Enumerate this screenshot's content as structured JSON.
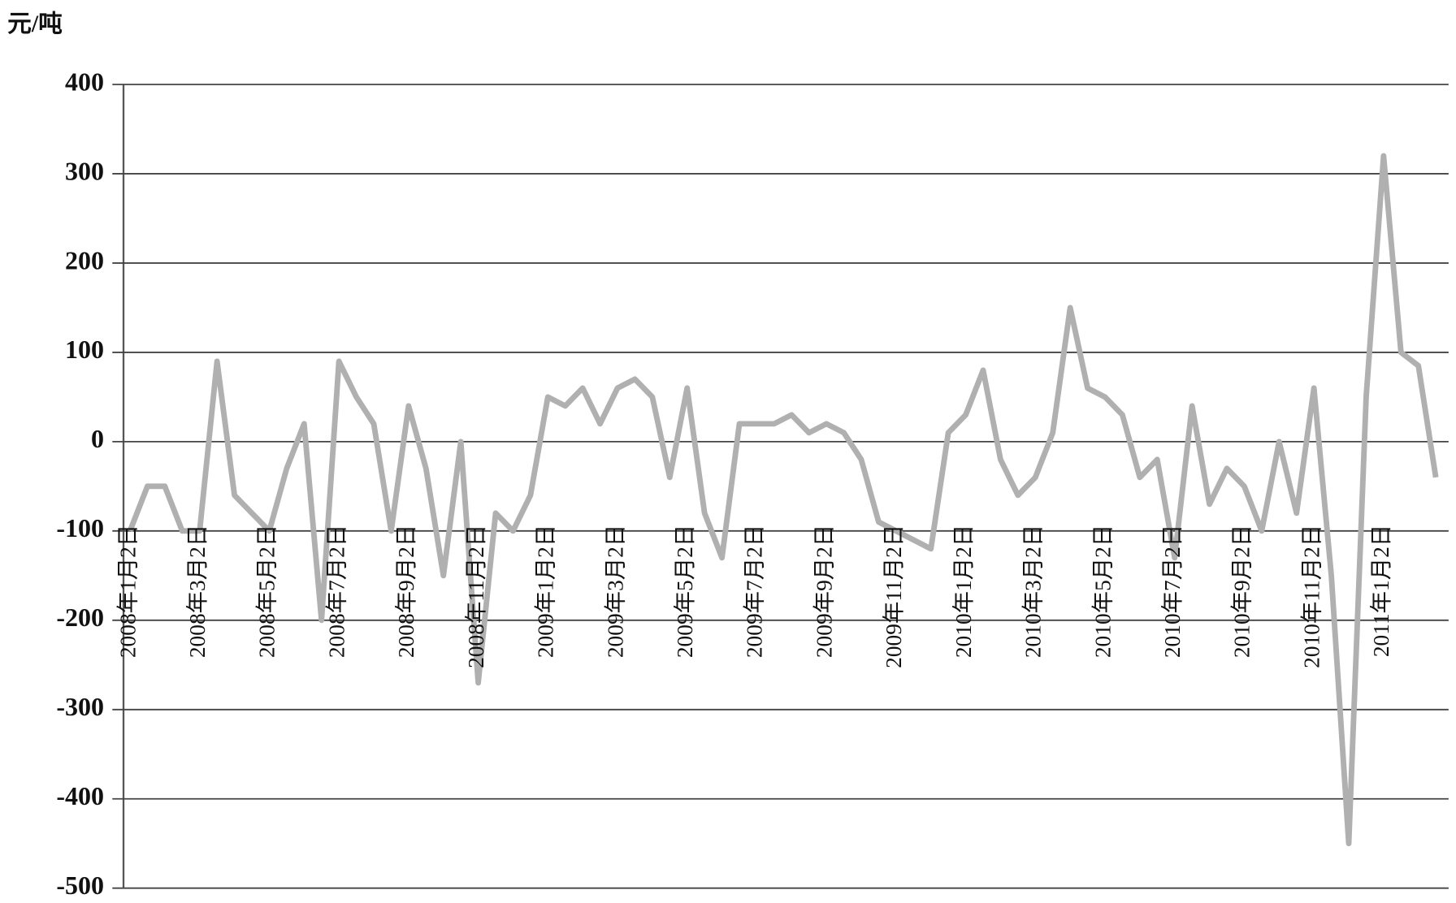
{
  "chart_data": {
    "type": "line",
    "ylabel": "元/吨",
    "color": "#b0b0b0",
    "categories": [
      "2008年1月2日",
      null,
      null,
      null,
      "2008年3月2日",
      null,
      null,
      null,
      "2008年5月2日",
      null,
      null,
      null,
      "2008年7月2日",
      null,
      null,
      null,
      "2008年9月2日",
      null,
      null,
      null,
      "2008年11月2日",
      null,
      null,
      null,
      "2009年1月2日",
      null,
      null,
      null,
      "2009年3月2日",
      null,
      null,
      null,
      "2009年5月2日",
      null,
      null,
      null,
      "2009年7月2日",
      null,
      null,
      null,
      "2009年9月2日",
      null,
      null,
      null,
      "2009年11月2日",
      null,
      null,
      null,
      "2010年1月2日",
      null,
      null,
      null,
      "2010年3月2日",
      null,
      null,
      null,
      "2010年5月2日",
      null,
      null,
      null,
      "2010年7月2日",
      null,
      null,
      null,
      "2010年9月2日",
      null,
      null,
      null,
      "2010年11月2日",
      null,
      null,
      null,
      "2011年1月2日",
      null,
      null,
      null
    ],
    "values": [
      -100,
      -50,
      -50,
      -100,
      -100,
      90,
      -60,
      -80,
      -100,
      -30,
      20,
      -200,
      90,
      50,
      20,
      -100,
      40,
      -30,
      -150,
      0,
      -270,
      -80,
      -100,
      -60,
      50,
      40,
      60,
      20,
      60,
      70,
      50,
      -40,
      60,
      -80,
      -130,
      20,
      20,
      20,
      30,
      10,
      20,
      10,
      -20,
      -90,
      -100,
      -110,
      -120,
      10,
      30,
      80,
      -20,
      -60,
      -40,
      10,
      150,
      60,
      50,
      30,
      -40,
      -20,
      -130,
      40,
      -70,
      -30,
      -50,
      -100,
      0,
      -80,
      60,
      -150,
      -450,
      50,
      320,
      100,
      85,
      -40
    ],
    "ylim": [
      -500,
      400
    ],
    "yticks": [
      -500,
      -400,
      -300,
      -200,
      -100,
      0,
      100,
      200,
      300,
      400
    ],
    "grid": true
  }
}
